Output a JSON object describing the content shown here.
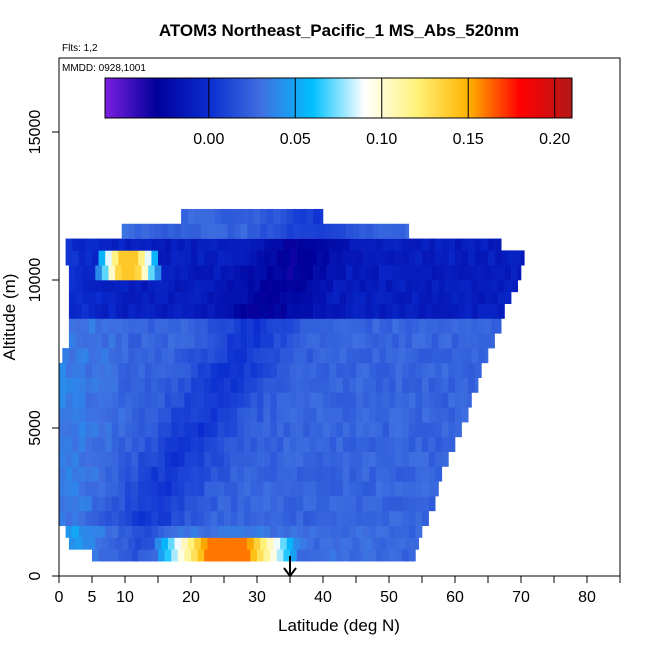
{
  "chart_data": {
    "type": "heatmap",
    "title": "ATOM3 Northeast_Pacific_1 MS_Abs_520nm",
    "flights_label": "Flts: 1,2",
    "dates_label": "MMDD: 0928,1001",
    "xlabel": "Latitude (deg N)",
    "ylabel": "Altitude (m)",
    "xlim": [
      0,
      85
    ],
    "ylim": [
      0,
      17500
    ],
    "x_ticks": [
      0,
      5,
      10,
      20,
      30,
      40,
      50,
      60,
      70,
      80
    ],
    "x_minor_ticks": [
      15,
      25,
      35,
      45,
      55,
      65,
      75,
      85
    ],
    "y_ticks": [
      0,
      5000,
      10000,
      15000
    ],
    "colorbar": {
      "min": -0.06,
      "max": 0.21,
      "ticks": [
        "0.00",
        "0.05",
        "0.10",
        "0.15",
        "0.20"
      ],
      "tick_values": [
        0.0,
        0.05,
        0.1,
        0.15,
        0.2
      ],
      "colors": [
        "#7a1fe0",
        "#00009a",
        "#0a2cd0",
        "#3f6fe0",
        "#00c0ff",
        "#ffffff",
        "#fff27a",
        "#ffb300",
        "#ff0000",
        "#b21818"
      ]
    },
    "layers": [
      {
        "alt_bottom": 500,
        "alt_top": 900,
        "lat_min": 5,
        "lat_max": 54
      },
      {
        "alt_bottom": 900,
        "alt_top": 1300,
        "lat_min": 1.5,
        "lat_max": 54.5
      },
      {
        "alt_bottom": 1300,
        "alt_top": 1700,
        "lat_min": 1,
        "lat_max": 55
      },
      {
        "alt_bottom": 1700,
        "alt_top": 2200,
        "lat_min": 0,
        "lat_max": 56
      },
      {
        "alt_bottom": 2200,
        "alt_top": 2700,
        "lat_min": 0,
        "lat_max": 57
      },
      {
        "alt_bottom": 2700,
        "alt_top": 3200,
        "lat_min": 0,
        "lat_max": 57.5
      },
      {
        "alt_bottom": 3200,
        "alt_top": 3700,
        "lat_min": 0,
        "lat_max": 58
      },
      {
        "alt_bottom": 3700,
        "alt_top": 4200,
        "lat_min": 0,
        "lat_max": 59
      },
      {
        "alt_bottom": 4200,
        "alt_top": 4700,
        "lat_min": 0,
        "lat_max": 60
      },
      {
        "alt_bottom": 4700,
        "alt_top": 5200,
        "lat_min": 0,
        "lat_max": 61
      },
      {
        "alt_bottom": 5200,
        "alt_top": 5700,
        "lat_min": 0,
        "lat_max": 62
      },
      {
        "alt_bottom": 5700,
        "alt_top": 6200,
        "lat_min": 0,
        "lat_max": 62.5
      },
      {
        "alt_bottom": 6200,
        "alt_top": 6700,
        "lat_min": 0,
        "lat_max": 63.5
      },
      {
        "alt_bottom": 6700,
        "alt_top": 7200,
        "lat_min": 0,
        "lat_max": 64
      },
      {
        "alt_bottom": 7200,
        "alt_top": 7700,
        "lat_min": 0.5,
        "lat_max": 65
      },
      {
        "alt_bottom": 7700,
        "alt_top": 8200,
        "lat_min": 1.5,
        "lat_max": 66
      },
      {
        "alt_bottom": 8200,
        "alt_top": 8700,
        "lat_min": 1.5,
        "lat_max": 67
      },
      {
        "alt_bottom": 8700,
        "alt_top": 9200,
        "lat_min": 1.5,
        "lat_max": 67.5
      },
      {
        "alt_bottom": 9200,
        "alt_top": 9600,
        "lat_min": 1.5,
        "lat_max": 68.5
      },
      {
        "alt_bottom": 9600,
        "alt_top": 10000,
        "lat_min": 1.5,
        "lat_max": 69.5
      },
      {
        "alt_bottom": 10000,
        "alt_top": 10500,
        "lat_min": 1.5,
        "lat_max": 70
      },
      {
        "alt_bottom": 10500,
        "alt_top": 11000,
        "lat_min": 1,
        "lat_max": 70.5
      },
      {
        "alt_bottom": 11000,
        "alt_top": 11400,
        "lat_min": 1,
        "lat_max": 67
      },
      {
        "alt_bottom": 11400,
        "alt_top": 11900,
        "lat_min": 9.5,
        "lat_max": 53
      },
      {
        "alt_bottom": 11900,
        "alt_top": 12400,
        "lat_min": 18.5,
        "lat_max": 40
      }
    ],
    "hotspots": [
      {
        "lat_min": 15,
        "lat_max": 36,
        "alt_bottom": 500,
        "alt_top": 1300,
        "value": 0.16
      },
      {
        "lat_min": 6,
        "lat_max": 15,
        "alt_bottom": 10000,
        "alt_top": 11000,
        "value": 0.14
      }
    ],
    "arrow_latitude": 35
  }
}
